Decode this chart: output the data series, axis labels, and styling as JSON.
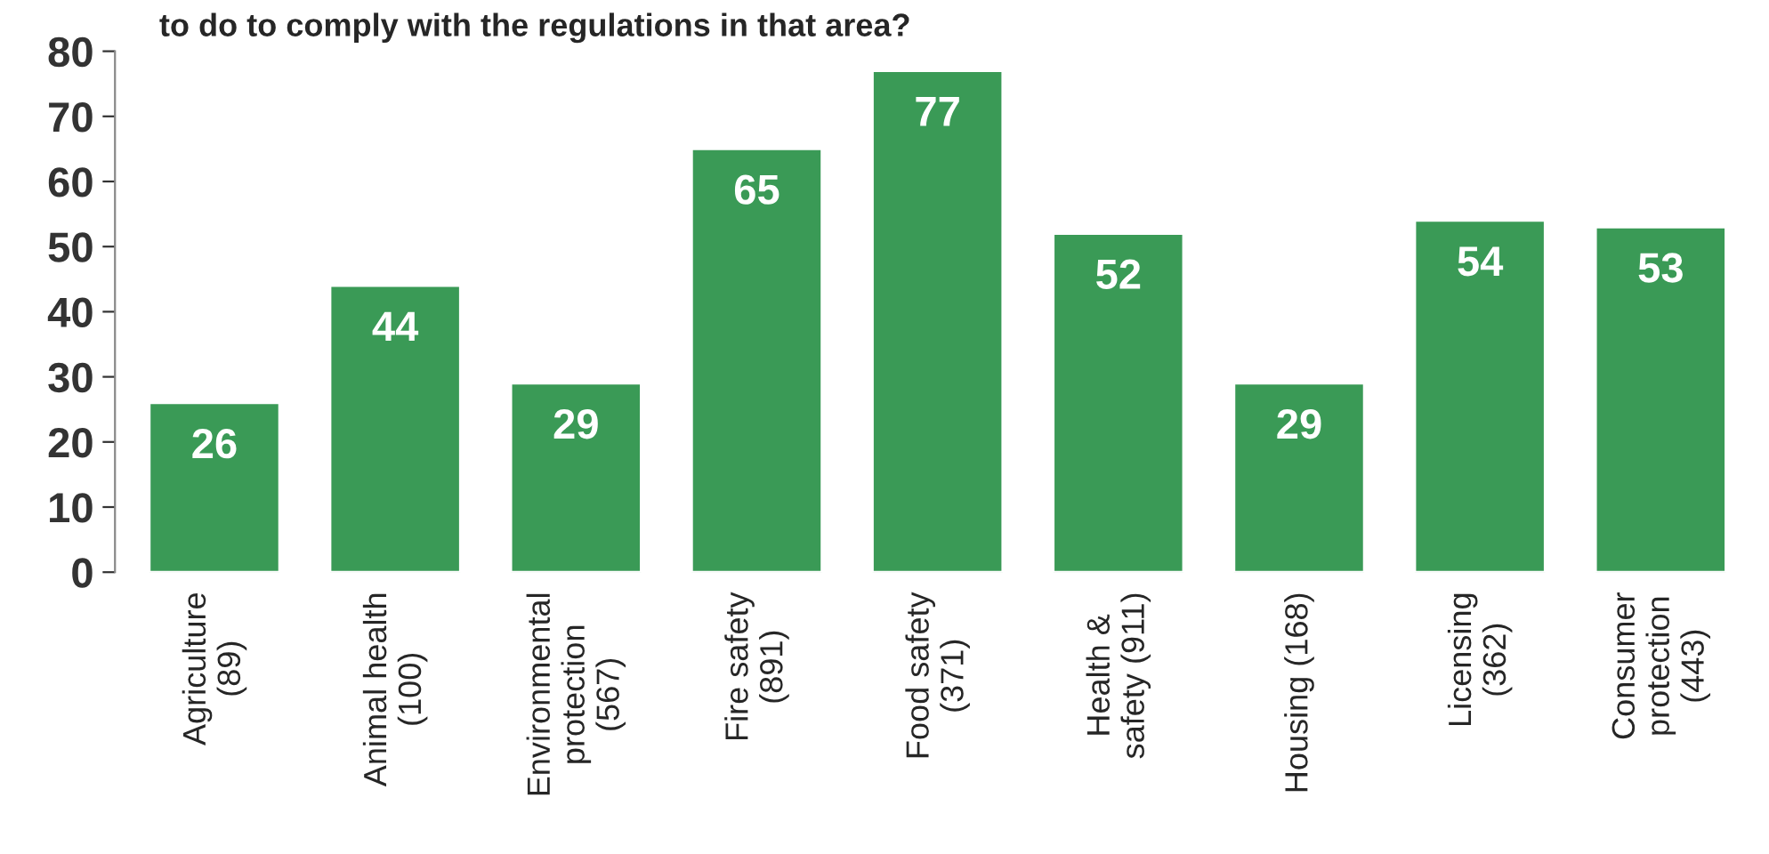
{
  "chart_data": {
    "type": "bar",
    "title": "to do to comply with the regulations in that area?",
    "categories": [
      "Agriculture\n(89)",
      "Animal health\n(100)",
      "Environmental\nprotection\n(567)",
      "Fire safety\n(891)",
      "Food safety\n(371)",
      "Health &\nsafety (911)",
      "Housing (168)",
      "Licensing\n(362)",
      "Consumer\nprotection\n(443)"
    ],
    "values": [
      26,
      44,
      29,
      65,
      77,
      52,
      29,
      54,
      53
    ],
    "color": "#3a9a56",
    "ylim": [
      0,
      80
    ],
    "yticks": [
      0,
      10,
      20,
      30,
      40,
      50,
      60,
      70,
      80
    ],
    "grid": false,
    "data_labels": true
  }
}
